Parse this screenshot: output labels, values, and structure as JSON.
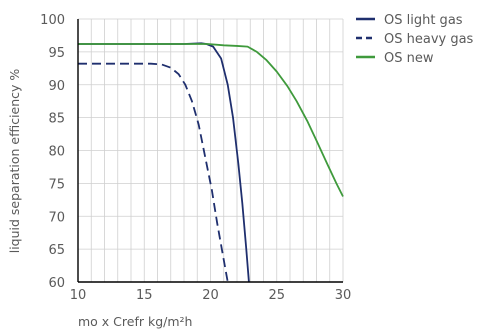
{
  "chart_data": {
    "type": "line",
    "title": "",
    "xlabel": "mo x Crefr kg/m²h",
    "ylabel": "liquid separation efficiency %",
    "xlim": [
      10,
      30
    ],
    "ylim": [
      60,
      100
    ],
    "xticks": [
      "10",
      "15",
      "20",
      "25",
      "30"
    ],
    "yticks": [
      "60",
      "65",
      "70",
      "75",
      "80",
      "85",
      "90",
      "95",
      "100"
    ],
    "grid": true,
    "legend_position": "right",
    "series": [
      {
        "name": "OS light gas",
        "color": "#1f2f6e",
        "style": "solid",
        "x": [
          10,
          12,
          14,
          16,
          18,
          19.3,
          19.7,
          20.2,
          20.8,
          21.3,
          21.7,
          22.1,
          22.4,
          22.7,
          22.9
        ],
        "y": [
          96.2,
          96.2,
          96.2,
          96.2,
          96.2,
          96.3,
          96.2,
          95.8,
          94,
          90,
          85,
          78,
          72,
          65,
          60
        ]
      },
      {
        "name": "OS heavy gas",
        "color": "#1f2f6e",
        "style": "dashed",
        "x": [
          10,
          12,
          14,
          15.5,
          16.3,
          17,
          17.6,
          18.1,
          18.6,
          19.1,
          19.6,
          20.1,
          20.5,
          20.9,
          21.3
        ],
        "y": [
          93.2,
          93.2,
          93.2,
          93.2,
          93.1,
          92.6,
          91.6,
          90,
          87.5,
          84,
          79,
          74,
          69,
          64.5,
          60
        ]
      },
      {
        "name": "OS new",
        "color": "#3f9a3c",
        "style": "solid",
        "x": [
          10,
          12,
          14,
          16,
          18,
          19.8,
          21,
          22,
          22.8,
          23.5,
          24.2,
          25,
          25.8,
          26.5,
          27.3,
          28,
          28.8,
          29.5,
          30
        ],
        "y": [
          96.2,
          96.2,
          96.2,
          96.2,
          96.2,
          96.2,
          96,
          95.9,
          95.8,
          95,
          93.8,
          92,
          89.8,
          87.5,
          84.5,
          81.5,
          78,
          75,
          73
        ]
      }
    ]
  }
}
